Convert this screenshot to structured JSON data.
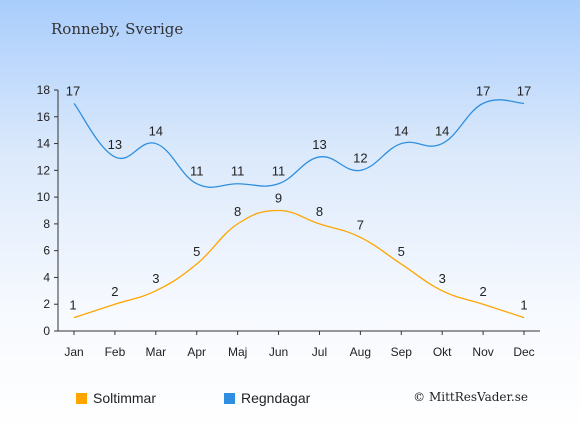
{
  "title": "Ronneby, Sverige",
  "copyright": "© MittResVader.se",
  "colors": {
    "sun": "#ffa500",
    "rain": "#2e8fe0",
    "axis": "#333333"
  },
  "chart_data": {
    "type": "line",
    "categories": [
      "Jan",
      "Feb",
      "Mar",
      "Apr",
      "Maj",
      "Jun",
      "Jul",
      "Aug",
      "Sep",
      "Okt",
      "Nov",
      "Dec"
    ],
    "series": [
      {
        "name": "Soltimmar",
        "values": [
          1,
          2,
          3,
          5,
          8,
          9,
          8,
          7,
          5,
          3,
          2,
          1
        ]
      },
      {
        "name": "Regndagar",
        "values": [
          17,
          13,
          14,
          11,
          11,
          11,
          13,
          12,
          14,
          14,
          17,
          17
        ]
      }
    ],
    "yticks": [
      0,
      2,
      4,
      6,
      8,
      10,
      12,
      14,
      16,
      18
    ],
    "ylim": [
      0,
      18
    ],
    "grid": false,
    "legend_position": "bottom-left"
  }
}
